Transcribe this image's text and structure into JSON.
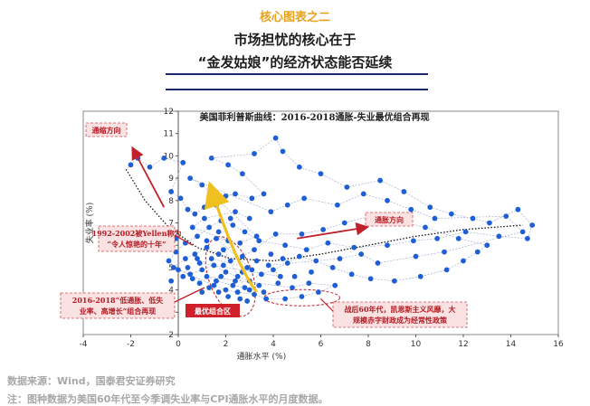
{
  "header": {
    "kicker": "核心图表之二",
    "title_line1": "市场担忧的核心在于",
    "title_line2": "“金发姑娘”的经济状态能否延续"
  },
  "chart_data": {
    "type": "scatter",
    "title": "美国菲利普斯曲线：2016-2018通胀-失业最优组合再现",
    "xlabel": "通胀水平 (%)",
    "ylabel": "失业率 (%)",
    "xlim": [
      -4,
      16
    ],
    "ylim": [
      2,
      12
    ],
    "xticks": [
      -4,
      -2,
      0,
      2,
      4,
      6,
      8,
      10,
      12,
      14,
      16
    ],
    "yticks": [
      2,
      3,
      4,
      5,
      6,
      7,
      8,
      9,
      10,
      11,
      12
    ],
    "grid": false,
    "series": [
      {
        "points": [
          [
            -2.0,
            9.6
          ],
          [
            -1.7,
            9.9
          ],
          [
            -1.2,
            9.5
          ],
          [
            -0.6,
            9.9
          ],
          [
            0.2,
            9.7
          ],
          [
            -0.3,
            8.4
          ],
          [
            0.1,
            8.1
          ],
          [
            0.4,
            7.6
          ],
          [
            0.7,
            7.4
          ],
          [
            1.1,
            7.7
          ],
          [
            1.6,
            7.8
          ],
          [
            2.0,
            8.2
          ],
          [
            2.4,
            8.3
          ],
          [
            3.1,
            8.1
          ],
          [
            3.6,
            8.3
          ],
          [
            2.7,
            9.2
          ],
          [
            2.1,
            9.6
          ],
          [
            1.4,
            9.9
          ],
          [
            3.2,
            10.1
          ],
          [
            4.1,
            10.8
          ],
          [
            4.4,
            10.2
          ],
          [
            5.1,
            9.5
          ],
          [
            6.0,
            9.2
          ],
          [
            7.1,
            8.6
          ],
          [
            8.5,
            8.9
          ],
          [
            9.5,
            8.4
          ],
          [
            10.6,
            7.7
          ],
          [
            11.5,
            7.4
          ],
          [
            12.4,
            7.2
          ],
          [
            13.1,
            7.0
          ],
          [
            14.3,
            7.6
          ],
          [
            14.9,
            6.9
          ],
          [
            14.7,
            6.3
          ],
          [
            13.5,
            6.4
          ],
          [
            12.1,
            6.6
          ],
          [
            10.9,
            6.3
          ],
          [
            9.9,
            6.2
          ],
          [
            8.8,
            6.0
          ],
          [
            7.4,
            5.9
          ],
          [
            6.3,
            6.1
          ],
          [
            5.4,
            5.8
          ],
          [
            4.5,
            6.0
          ],
          [
            3.4,
            6.2
          ],
          [
            2.8,
            6.6
          ],
          [
            2.3,
            6.9
          ],
          [
            1.8,
            7.1
          ],
          [
            1.3,
            6.8
          ],
          [
            0.8,
            6.4
          ],
          [
            0.3,
            6.1
          ],
          [
            -0.1,
            5.7
          ],
          [
            -0.4,
            5.3
          ],
          [
            0.0,
            4.9
          ],
          [
            0.5,
            4.7
          ],
          [
            1.0,
            4.9
          ],
          [
            1.5,
            5.1
          ],
          [
            2.0,
            4.8
          ],
          [
            2.5,
            4.6
          ],
          [
            3.0,
            4.4
          ],
          [
            3.5,
            4.7
          ],
          [
            4.0,
            4.9
          ],
          [
            4.6,
            5.2
          ],
          [
            5.1,
            5.5
          ],
          [
            5.8,
            5.3
          ],
          [
            6.5,
            5.0
          ],
          [
            7.3,
            4.7
          ],
          [
            8.1,
            4.5
          ],
          [
            9.1,
            4.4
          ],
          [
            10.2,
            4.6
          ],
          [
            11.3,
            4.9
          ],
          [
            12.0,
            5.3
          ],
          [
            12.6,
            5.7
          ],
          [
            13.0,
            6.0
          ],
          [
            11.8,
            6.3
          ],
          [
            10.4,
            6.8
          ],
          [
            9.2,
            7.1
          ],
          [
            8.1,
            7.3
          ],
          [
            7.0,
            7.0
          ],
          [
            6.1,
            6.7
          ],
          [
            5.2,
            6.5
          ],
          [
            4.1,
            6.5
          ],
          [
            3.2,
            5.8
          ],
          [
            2.7,
            5.5
          ],
          [
            2.2,
            5.3
          ],
          [
            1.7,
            5.6
          ],
          [
            1.2,
            5.9
          ],
          [
            0.7,
            5.6
          ],
          [
            0.3,
            5.4
          ],
          [
            -0.2,
            5.0
          ],
          [
            1.5,
            4.2
          ],
          [
            2.0,
            4.0
          ],
          [
            2.5,
            3.9
          ],
          [
            3.2,
            3.8
          ],
          [
            3.7,
            3.6
          ],
          [
            4.5,
            3.6
          ],
          [
            5.2,
            3.7
          ],
          [
            5.9,
            3.9
          ],
          [
            6.6,
            4.2
          ],
          [
            5.5,
            4.3
          ],
          [
            4.8,
            4.1
          ],
          [
            1.2,
            4.6
          ],
          [
            1.6,
            4.4
          ],
          [
            2.3,
            4.2
          ],
          [
            2.8,
            4.1
          ],
          [
            1.9,
            5.8
          ],
          [
            2.6,
            6.1
          ],
          [
            3.3,
            6.4
          ],
          [
            1.0,
            8.7
          ],
          [
            0.5,
            9.0
          ],
          [
            3.9,
            7.5
          ],
          [
            4.6,
            7.8
          ],
          [
            5.3,
            8.1
          ],
          [
            6.7,
            7.8
          ],
          [
            7.8,
            8.3
          ],
          [
            8.8,
            8.0
          ],
          [
            9.8,
            7.6
          ],
          [
            10.8,
            7.2
          ],
          [
            13.8,
            7.3
          ],
          [
            14.5,
            6.6
          ],
          [
            11.2,
            5.7
          ],
          [
            10.0,
            5.5
          ],
          [
            8.4,
            5.2
          ],
          [
            7.7,
            5.6
          ],
          [
            6.8,
            5.4
          ],
          [
            3.8,
            5.1
          ],
          [
            4.3,
            4.6
          ],
          [
            0.9,
            5.2
          ],
          [
            1.4,
            5.4
          ],
          [
            2.9,
            5.0
          ],
          [
            3.1,
            4.9
          ],
          [
            1.6,
            6.3
          ],
          [
            2.1,
            6.2
          ],
          [
            0.6,
            6.8
          ],
          [
            1.1,
            7.2
          ],
          [
            2.4,
            7.5
          ],
          [
            3.0,
            7.2
          ]
        ]
      }
    ],
    "annotations": {
      "tightening": "通缩方向",
      "inflation": "通胀方向",
      "yellen": "1992-2002被Yellen称为“令人惊艳的十年”",
      "low_inflation": "2016-2018“低通胀、低失业率、高增长”组合再现",
      "best_zone": "最优组合区",
      "sixties": "战后60年代，凯恩斯主义风靡，大规模赤字财政成为经常性政策"
    }
  },
  "footer": {
    "source": "数据来源：Wind，国泰君安证券研究",
    "note": "注：图种数据为美国60年代至今季调失业率与CPI通胀水平的月度数据。"
  },
  "colors": {
    "kicker": "#e8a21a",
    "rule": "#1a2a6c",
    "dots": "#1f5fd6",
    "arrow_red": "#c0202a",
    "arrow_yellow": "#f0c020",
    "box_pink": "#fbe2e2",
    "box_border": "#d24c4c"
  }
}
